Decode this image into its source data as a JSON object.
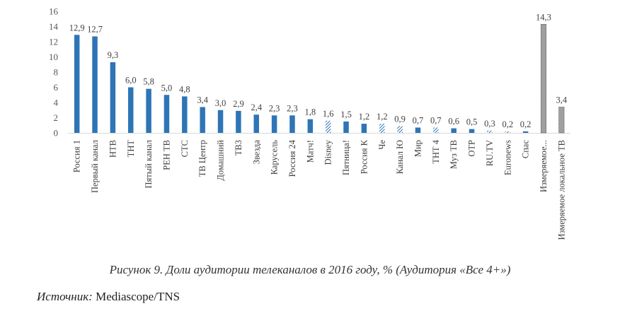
{
  "chart_data": {
    "type": "bar",
    "ylim": [
      0,
      16
    ],
    "yticks": [
      "0",
      "2",
      "4",
      "6",
      "8",
      "10",
      "12",
      "14",
      "16"
    ],
    "grid": false,
    "legend": "none",
    "colors": {
      "solid": "#2E75B6",
      "hatched": "#2E75B6",
      "dotted": "#595959"
    },
    "bars": [
      {
        "category": "Россия 1",
        "value": 12.9,
        "label": "12,9",
        "fill": "solid"
      },
      {
        "category": "Первый канал",
        "value": 12.7,
        "label": "12,7",
        "fill": "solid"
      },
      {
        "category": "НТВ",
        "value": 9.3,
        "label": "9,3",
        "fill": "solid"
      },
      {
        "category": "ТНТ",
        "value": 6.0,
        "label": "6,0",
        "fill": "solid"
      },
      {
        "category": "Пятый канал",
        "value": 5.8,
        "label": "5,8",
        "fill": "solid"
      },
      {
        "category": "РЕН ТВ",
        "value": 5.0,
        "label": "5,0",
        "fill": "solid"
      },
      {
        "category": "СТС",
        "value": 4.8,
        "label": "4,8",
        "fill": "solid"
      },
      {
        "category": "ТВ Центр",
        "value": 3.4,
        "label": "3,4",
        "fill": "solid"
      },
      {
        "category": "Домашний",
        "value": 3.0,
        "label": "3,0",
        "fill": "solid"
      },
      {
        "category": "ТВ3",
        "value": 2.9,
        "label": "2,9",
        "fill": "solid"
      },
      {
        "category": "Звезда",
        "value": 2.4,
        "label": "2,4",
        "fill": "solid"
      },
      {
        "category": "Карусель",
        "value": 2.3,
        "label": "2,3",
        "fill": "solid"
      },
      {
        "category": "Россия 24",
        "value": 2.3,
        "label": "2,3",
        "fill": "solid"
      },
      {
        "category": "Матч!",
        "value": 1.8,
        "label": "1,8",
        "fill": "solid"
      },
      {
        "category": "Disney",
        "value": 1.6,
        "label": "1,6",
        "fill": "hatched"
      },
      {
        "category": "Пятница!",
        "value": 1.5,
        "label": "1,5",
        "fill": "solid"
      },
      {
        "category": "Россия К",
        "value": 1.2,
        "label": "1,2",
        "fill": "solid"
      },
      {
        "category": " Че",
        "value": 1.2,
        "label": "1,2",
        "fill": "hatched"
      },
      {
        "category": "Канал Ю",
        "value": 0.9,
        "label": "0,9",
        "fill": "hatched"
      },
      {
        "category": "Мир",
        "value": 0.7,
        "label": "0,7",
        "fill": "solid"
      },
      {
        "category": "ТНТ 4",
        "value": 0.7,
        "label": "0,7",
        "fill": "hatched"
      },
      {
        "category": "Муз ТВ",
        "value": 0.6,
        "label": "0,6",
        "fill": "solid"
      },
      {
        "category": "ОТР",
        "value": 0.5,
        "label": "0,5",
        "fill": "solid"
      },
      {
        "category": "RU.TV",
        "value": 0.3,
        "label": "0,3",
        "fill": "hatched"
      },
      {
        "category": "Euronews",
        "value": 0.2,
        "label": "0,2",
        "fill": "hatched"
      },
      {
        "category": "Спас",
        "value": 0.2,
        "label": "0,2",
        "fill": "solid"
      },
      {
        "category": "Измеряемое...",
        "value": 14.3,
        "label": "14,3",
        "fill": "dotted"
      },
      {
        "category": "Измеряемое локальное ТВ",
        "value": 3.4,
        "label": "3,4",
        "fill": "dotted"
      }
    ]
  },
  "caption": "Рисунок 9. Доли аудитории телеканалов в 2016 году, % (Аудитория «Все 4+»)",
  "source": {
    "label": "Источник:",
    "value": " Mediascope/TNS"
  }
}
